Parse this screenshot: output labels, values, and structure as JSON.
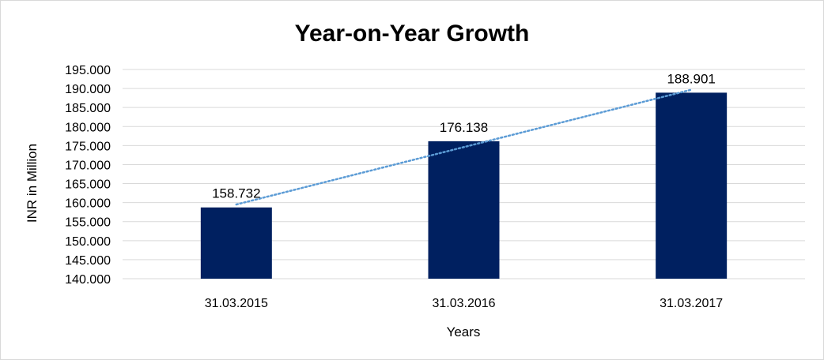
{
  "chart_data": {
    "type": "bar",
    "title": "Year-on-Year Growth",
    "xlabel": "Years",
    "ylabel": "INR in Million",
    "categories": [
      "31.03.2015",
      "31.03.2016",
      "31.03.2017"
    ],
    "values": [
      158.732,
      176.138,
      188.901
    ],
    "value_labels": [
      "158.732",
      "176.138",
      "188.901"
    ],
    "ylim": [
      140,
      195
    ],
    "ytick_step": 5,
    "ytick_labels": [
      "140.000",
      "145.000",
      "150.000",
      "155.000",
      "160.000",
      "165.000",
      "170.000",
      "175.000",
      "180.000",
      "185.000",
      "190.000",
      "195.000"
    ],
    "grid": true,
    "legend": "none",
    "trendline": {
      "type": "linear",
      "style": "dotted",
      "color": "#5b9bd5"
    },
    "colors": {
      "bar": "#002060",
      "gridline": "#d9d9d9"
    }
  }
}
